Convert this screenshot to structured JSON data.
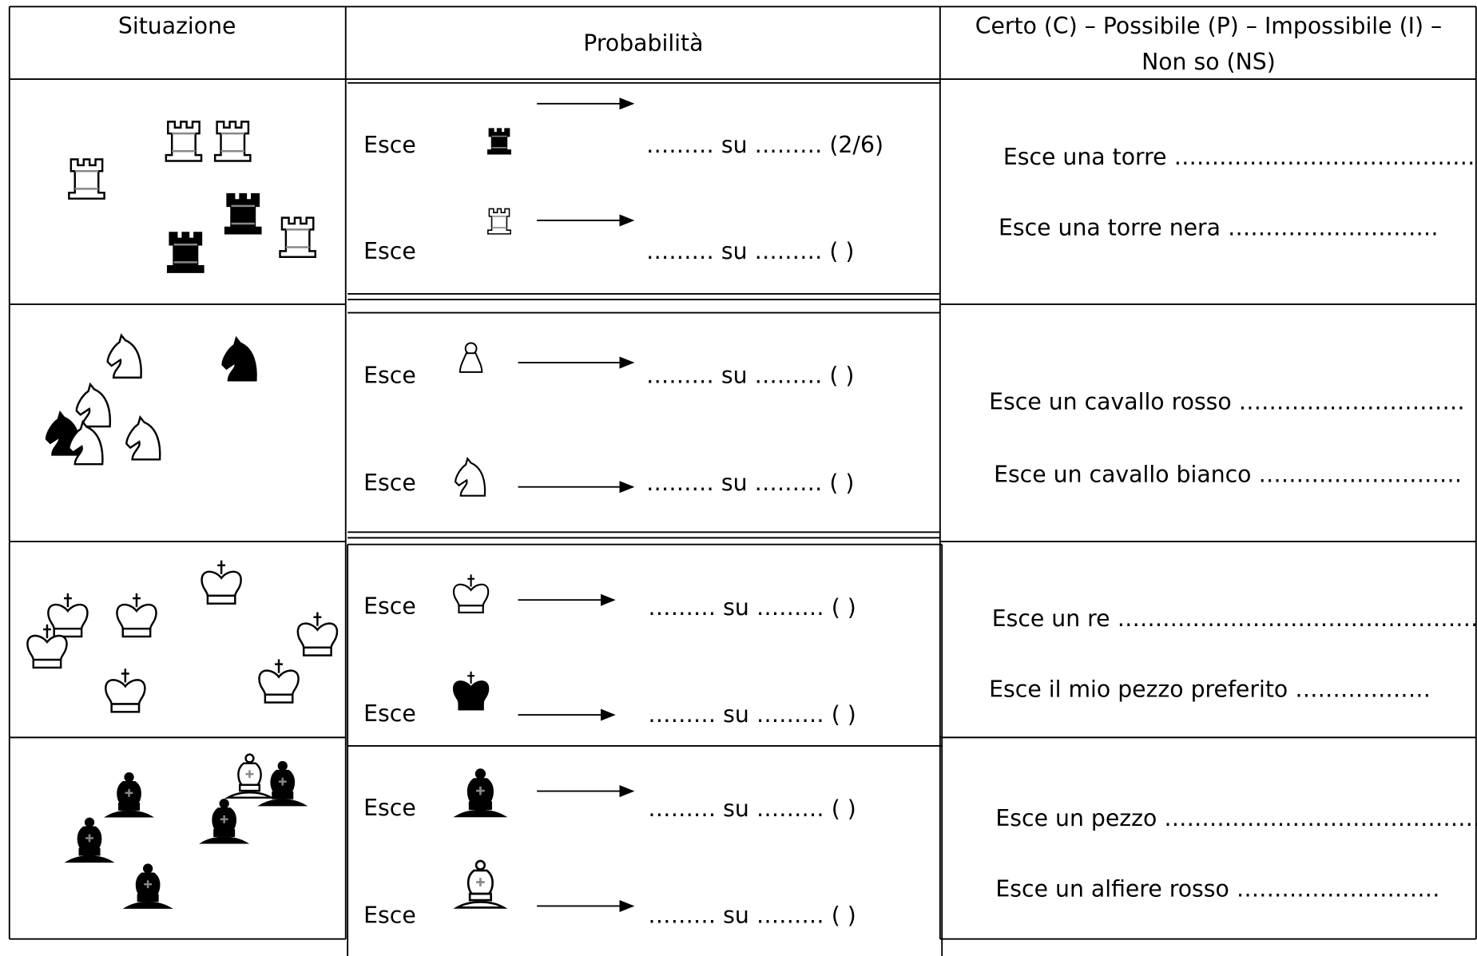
{
  "header": {
    "columns": [
      "Situazione",
      "Probabilità",
      "Certo (C) – Possibile (P) – Impossibile (I) –",
      "Non so (NS)"
    ]
  },
  "rows": [
    {
      "probabilities": [
        {
          "label": "Esce",
          "answer": "……… su ……… (2/6)"
        },
        {
          "label": "Esce",
          "answer": "……… su ……… (      )"
        }
      ],
      "statements": [
        "Esce una torre …………………….……………",
        "Esce una torre nera …………….…………"
      ]
    },
    {
      "probabilities": [
        {
          "label": "Esce",
          "answer": "……… su ……… (      )"
        },
        {
          "label": "Esce",
          "answer": "……… su ……… (      )"
        }
      ],
      "statements": [
        "Esce un cavallo rosso …………………………",
        "Esce un cavallo bianco ………………………"
      ]
    },
    {
      "probabilities": [
        {
          "label": "Esce",
          "answer": "……… su ……… (      )"
        },
        {
          "label": "Esce",
          "answer": "……… su ……… (      )"
        }
      ],
      "statements": [
        "Esce un re ……….…………………….……………",
        "Esce il mio pezzo preferito  ………………"
      ]
    },
    {
      "probabilities": [
        {
          "label": "Esce",
          "answer": "……… su ……… (      )"
        },
        {
          "label": "Esce",
          "answer": "……… su ……… (      )"
        }
      ],
      "statements": [
        "Esce un pezzo ……………………………………",
        "Esce un alfiere rosso ………………………"
      ]
    }
  ]
}
